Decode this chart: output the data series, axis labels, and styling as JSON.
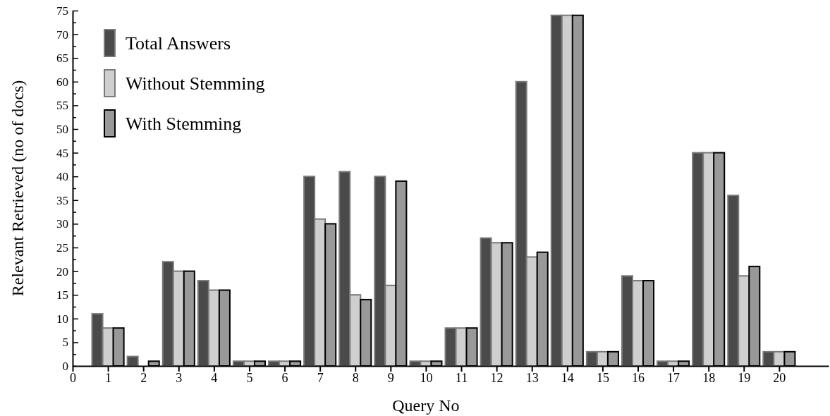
{
  "chart_data": {
    "type": "bar",
    "xlabel": "Query No",
    "ylabel": "Relevant Retrieved (no of docs)",
    "x": [
      1,
      2,
      3,
      4,
      5,
      6,
      7,
      8,
      9,
      10,
      11,
      12,
      13,
      14,
      15,
      16,
      17,
      18,
      19,
      20
    ],
    "series": [
      {
        "name": "Total Answers",
        "color": "#4a4a4a",
        "values": [
          11,
          2,
          22,
          18,
          1,
          1,
          40,
          41,
          40,
          1,
          8,
          27,
          60,
          74,
          3,
          19,
          1,
          45,
          36,
          3
        ]
      },
      {
        "name": "Without Stemming",
        "color": "#cfcfcf",
        "values": [
          8,
          0,
          20,
          16,
          1,
          1,
          31,
          15,
          17,
          1,
          8,
          26,
          23,
          74,
          3,
          18,
          1,
          45,
          19,
          3
        ]
      },
      {
        "name": "With Stemming",
        "color": "#999999",
        "values": [
          8,
          1,
          20,
          16,
          1,
          1,
          30,
          14,
          39,
          1,
          8,
          26,
          24,
          74,
          3,
          18,
          1,
          45,
          21,
          3
        ]
      }
    ],
    "xlim": [
      0,
      21.4
    ],
    "xticks": [
      0,
      1,
      2,
      3,
      4,
      5,
      6,
      7,
      8,
      9,
      10,
      11,
      12,
      13,
      14,
      15,
      16,
      17,
      18,
      19,
      20
    ],
    "ylim": [
      0,
      75
    ],
    "yticks": [
      0,
      {
        "value": 2.5,
        "label": null
      },
      5,
      {
        "value": 7.5,
        "label": null
      },
      10,
      {
        "value": 12.5,
        "label": null
      },
      15,
      {
        "value": 17.5,
        "label": null
      },
      20,
      {
        "value": 22.5,
        "label": null
      },
      25,
      {
        "value": 27.5,
        "label": null
      },
      30,
      {
        "value": 32.5,
        "label": null
      },
      35,
      {
        "value": 37.5,
        "label": null
      },
      40,
      {
        "value": 42.5,
        "label": null
      },
      45,
      {
        "value": 47.5,
        "label": null
      },
      50,
      {
        "value": 52.5,
        "label": null
      },
      55,
      {
        "value": 57.5,
        "label": null
      },
      60,
      {
        "value": 62.5,
        "label": null
      },
      65,
      {
        "value": 67.5,
        "label": null
      },
      70,
      {
        "value": 72.5,
        "label": null
      },
      75
    ],
    "grid": false,
    "legend": "top left"
  }
}
